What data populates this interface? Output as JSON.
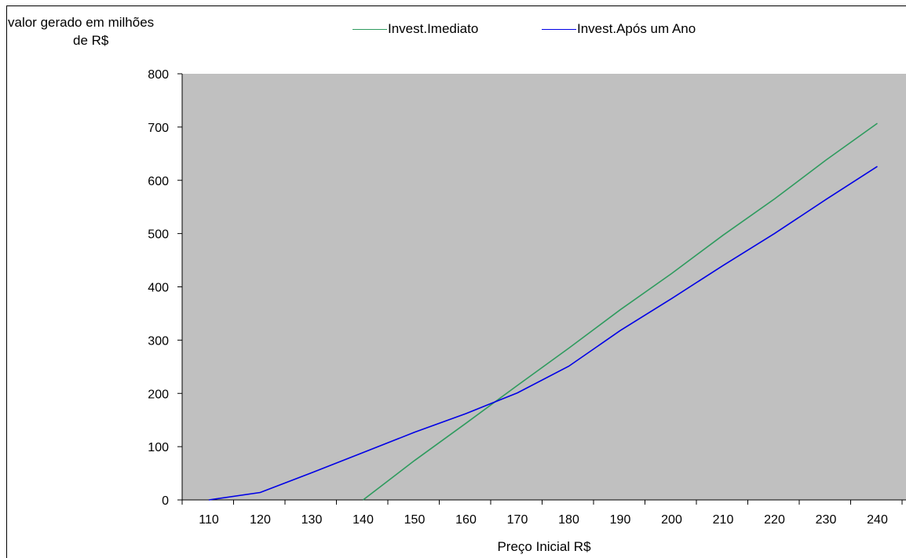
{
  "chart_data": {
    "type": "line",
    "ylabel_lines": [
      "valor gerado em milhões",
      "de R$"
    ],
    "xlabel": "Preço Inicial R$",
    "x": [
      110,
      120,
      130,
      140,
      150,
      160,
      170,
      180,
      190,
      200,
      210,
      220,
      230,
      240
    ],
    "ylim": [
      0,
      800
    ],
    "yticks": [
      0,
      100,
      200,
      300,
      400,
      500,
      600,
      700,
      800
    ],
    "grid": false,
    "plot_background": "#c0c0c0",
    "legend_position": "top",
    "series": [
      {
        "name": "Invest.Imediato",
        "color": "#2e9b5e",
        "points": [
          [
            140,
            0
          ],
          [
            150,
            74
          ],
          [
            160,
            144
          ],
          [
            170,
            215
          ],
          [
            180,
            285
          ],
          [
            190,
            357
          ],
          [
            200,
            425
          ],
          [
            210,
            497
          ],
          [
            220,
            565
          ],
          [
            230,
            638
          ],
          [
            240,
            707
          ]
        ]
      },
      {
        "name": "Invest.Após um Ano",
        "color": "#0000e6",
        "points": [
          [
            110,
            0
          ],
          [
            120,
            14
          ],
          [
            130,
            51
          ],
          [
            140,
            89
          ],
          [
            150,
            127
          ],
          [
            160,
            162
          ],
          [
            170,
            201
          ],
          [
            180,
            251
          ],
          [
            190,
            318
          ],
          [
            200,
            378
          ],
          [
            210,
            440
          ],
          [
            220,
            500
          ],
          [
            230,
            564
          ],
          [
            240,
            626
          ]
        ]
      }
    ]
  }
}
